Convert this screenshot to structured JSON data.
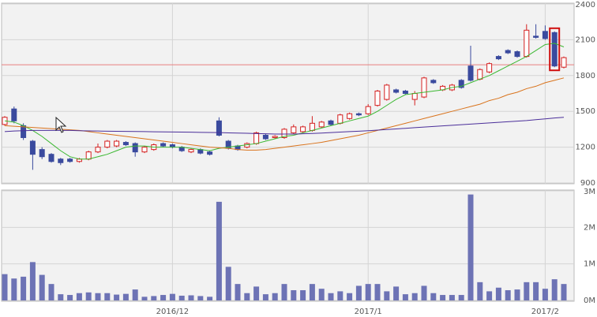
{
  "chart_data": [
    {
      "type": "candlestick",
      "open": [
        1390,
        1520,
        1380,
        1250,
        1180,
        1140,
        1100,
        1100,
        1080,
        1100,
        1160,
        1200,
        1210,
        1240,
        1230,
        1160,
        1180,
        1230,
        1220,
        1200,
        1160,
        1180,
        1160,
        1420,
        1250,
        1210,
        1200,
        1230,
        1300,
        1280,
        1280,
        1320,
        1330,
        1340,
        1370,
        1420,
        1400,
        1440,
        1480,
        1480,
        1550,
        1600,
        1680,
        1670,
        1600,
        1620,
        1760,
        1680,
        1680,
        1760,
        1880,
        1770,
        1830,
        1960,
        2010,
        2000,
        1960,
        2130,
        2170,
        2160,
        1870
      ],
      "high": [
        1460,
        1540,
        1400,
        1260,
        1200,
        1150,
        1110,
        1110,
        1110,
        1170,
        1230,
        1260,
        1260,
        1250,
        1240,
        1210,
        1230,
        1240,
        1230,
        1210,
        1190,
        1190,
        1170,
        1450,
        1260,
        1220,
        1240,
        1330,
        1310,
        1300,
        1360,
        1390,
        1380,
        1460,
        1420,
        1430,
        1480,
        1490,
        1490,
        1560,
        1680,
        1730,
        1690,
        1680,
        1670,
        1790,
        1770,
        1720,
        1730,
        1770,
        2050,
        1860,
        1910,
        1970,
        2020,
        2010,
        2230,
        2230,
        2220,
        2170,
        1960
      ],
      "low": [
        1380,
        1400,
        1260,
        1010,
        1100,
        1070,
        1050,
        1070,
        1070,
        1090,
        1150,
        1190,
        1200,
        1210,
        1120,
        1150,
        1170,
        1200,
        1190,
        1160,
        1150,
        1140,
        1130,
        1290,
        1180,
        1170,
        1190,
        1220,
        1260,
        1270,
        1270,
        1310,
        1320,
        1330,
        1360,
        1380,
        1390,
        1430,
        1460,
        1470,
        1540,
        1590,
        1650,
        1640,
        1550,
        1610,
        1730,
        1670,
        1670,
        1690,
        1750,
        1760,
        1820,
        1930,
        1980,
        1950,
        1950,
        2110,
        2100,
        1870,
        1860
      ],
      "close": [
        1450,
        1420,
        1280,
        1140,
        1120,
        1080,
        1070,
        1080,
        1100,
        1160,
        1200,
        1250,
        1250,
        1220,
        1160,
        1200,
        1220,
        1210,
        1200,
        1170,
        1180,
        1150,
        1140,
        1300,
        1190,
        1180,
        1230,
        1320,
        1270,
        1290,
        1350,
        1370,
        1370,
        1400,
        1410,
        1390,
        1470,
        1480,
        1470,
        1540,
        1670,
        1720,
        1660,
        1650,
        1650,
        1780,
        1740,
        1710,
        1720,
        1700,
        1760,
        1850,
        1900,
        1940,
        1990,
        1960,
        2180,
        2120,
        2110,
        1880,
        1950
      ],
      "up_color": "#d42020",
      "down_color": "#3a4a9e",
      "ma": [
        {
          "color": "#3cb832",
          "values": [
            1420,
            1410,
            1380,
            1340,
            1290,
            1230,
            1170,
            1120,
            1100,
            1100,
            1120,
            1140,
            1170,
            1200,
            1210,
            1210,
            1200,
            1200,
            1200,
            1200,
            1190,
            1180,
            1170,
            1190,
            1200,
            1210,
            1220,
            1230,
            1250,
            1270,
            1290,
            1300,
            1320,
            1340,
            1360,
            1380,
            1400,
            1420,
            1440,
            1460,
            1500,
            1550,
            1600,
            1640,
            1650,
            1660,
            1670,
            1680,
            1700,
            1710,
            1740,
            1770,
            1800,
            1840,
            1880,
            1920,
            1960,
            2010,
            2060,
            2070,
            2040
          ]
        },
        {
          "color": "#d9731c",
          "values": [
            1380,
            1375,
            1370,
            1365,
            1360,
            1355,
            1350,
            1345,
            1340,
            1330,
            1320,
            1310,
            1300,
            1290,
            1280,
            1270,
            1260,
            1250,
            1240,
            1230,
            1220,
            1210,
            1200,
            1195,
            1190,
            1180,
            1175,
            1175,
            1180,
            1190,
            1200,
            1210,
            1220,
            1230,
            1240,
            1255,
            1270,
            1285,
            1300,
            1320,
            1340,
            1360,
            1380,
            1400,
            1420,
            1440,
            1460,
            1480,
            1500,
            1520,
            1540,
            1560,
            1590,
            1610,
            1640,
            1660,
            1690,
            1710,
            1740,
            1760,
            1780
          ]
        },
        {
          "color": "#4b2f9a",
          "values": [
            1330,
            1335,
            1338,
            1340,
            1340,
            1340,
            1340,
            1340,
            1338,
            1336,
            1335,
            1334,
            1333,
            1332,
            1331,
            1330,
            1329,
            1328,
            1327,
            1326,
            1325,
            1324,
            1323,
            1322,
            1320,
            1318,
            1316,
            1314,
            1312,
            1310,
            1310,
            1310,
            1312,
            1315,
            1318,
            1322,
            1326,
            1330,
            1334,
            1338,
            1343,
            1348,
            1353,
            1358,
            1363,
            1368,
            1373,
            1378,
            1383,
            1388,
            1393,
            1398,
            1403,
            1408,
            1413,
            1418,
            1423,
            1430,
            1437,
            1444,
            1450
          ]
        }
      ],
      "reference_line": {
        "value": 1890,
        "color": "#e88080"
      },
      "highlight_index": 59,
      "highlight_color": "#d01010",
      "ylim": [
        900,
        2400
      ],
      "yticks": [
        900,
        1200,
        1500,
        1800,
        2100,
        2400
      ],
      "grid": true
    },
    {
      "type": "bar",
      "categories": [
        null,
        null,
        null,
        null,
        null,
        null,
        null,
        null,
        null,
        null,
        null,
        null,
        null,
        null,
        null,
        null,
        null,
        null,
        "2016/12",
        null,
        null,
        null,
        null,
        null,
        null,
        null,
        null,
        null,
        null,
        null,
        null,
        null,
        null,
        null,
        null,
        null,
        null,
        null,
        null,
        "2017/1",
        null,
        null,
        null,
        null,
        null,
        null,
        null,
        null,
        null,
        null,
        null,
        null,
        null,
        null,
        null,
        null,
        null,
        null,
        "2017/2",
        null,
        null
      ],
      "values": [
        720000,
        600000,
        650000,
        1050000,
        700000,
        450000,
        170000,
        150000,
        200000,
        220000,
        200000,
        200000,
        160000,
        180000,
        300000,
        100000,
        120000,
        150000,
        180000,
        130000,
        140000,
        120000,
        100000,
        2700000,
        920000,
        450000,
        200000,
        380000,
        170000,
        200000,
        450000,
        280000,
        280000,
        450000,
        320000,
        200000,
        250000,
        200000,
        400000,
        450000,
        450000,
        250000,
        380000,
        170000,
        200000,
        400000,
        200000,
        150000,
        150000,
        150000,
        2900000,
        500000,
        250000,
        350000,
        280000,
        300000,
        500000,
        500000,
        320000,
        580000,
        450000
      ],
      "color": "#6d73b5",
      "ylim": [
        0,
        3000000
      ],
      "yticks": [
        {
          "value": 0,
          "label": "0M"
        },
        {
          "value": 1000000,
          "label": "1M"
        },
        {
          "value": 2000000,
          "label": "2M"
        },
        {
          "value": 3000000,
          "label": "3M"
        }
      ],
      "grid": true
    }
  ]
}
